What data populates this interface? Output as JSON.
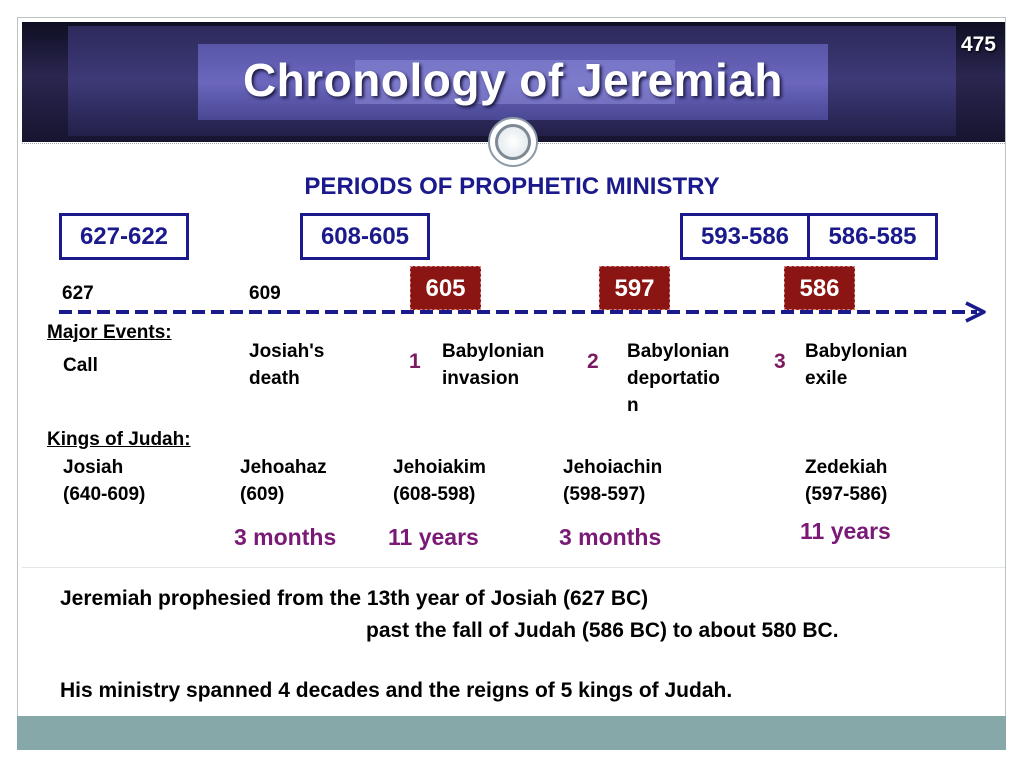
{
  "slide": {
    "number": "475",
    "title": "Chronology of Jeremiah"
  },
  "ministry": {
    "heading": "PERIODS OF PROPHETIC MINISTRY",
    "periods": [
      "627-622",
      "608-605",
      "593-586",
      "586-585"
    ]
  },
  "timeline": {
    "years": [
      "627",
      "609"
    ],
    "invasions": [
      "605",
      "597",
      "586"
    ]
  },
  "events": {
    "label": "Major Events:",
    "items": [
      {
        "text_1": "Call"
      },
      {
        "text_1": "Josiah's",
        "text_2": "death"
      },
      {
        "num": "1",
        "text_1": "Babylonian",
        "text_2": "invasion"
      },
      {
        "num": "2",
        "text_1": "Babylonian",
        "text_2": "deportatio",
        "text_3": "n"
      },
      {
        "num": "3",
        "text_1": "Babylonian",
        "text_2": "exile"
      }
    ]
  },
  "kings": {
    "label": "Kings of Judah:",
    "items": [
      {
        "name": "Josiah",
        "reign": "(640-609)"
      },
      {
        "name": "Jehoahaz",
        "reign": "(609)",
        "duration": "3 months"
      },
      {
        "name": "Jehoiakim",
        "reign": "(608-598)",
        "duration": "11 years"
      },
      {
        "name": "Jehoiachin",
        "reign": "(598-597)",
        "duration": "3 months"
      },
      {
        "name": "Zedekiah",
        "reign": "(597-586)",
        "duration": "11 years"
      }
    ]
  },
  "summary": {
    "line_1": "Jeremiah prophesied from the 13th year of Josiah (627 BC)",
    "line_2": "past the fall of Judah (586 BC) to about 580 BC.",
    "line_3": "His ministry spanned 4 decades and the reigns of 5 kings of Judah."
  },
  "colors": {
    "accent_blue": "#1a1a8c",
    "invasion_red": "#8b1512",
    "duration_purple": "#7a1a76",
    "footer_teal": "#87a8a8"
  }
}
